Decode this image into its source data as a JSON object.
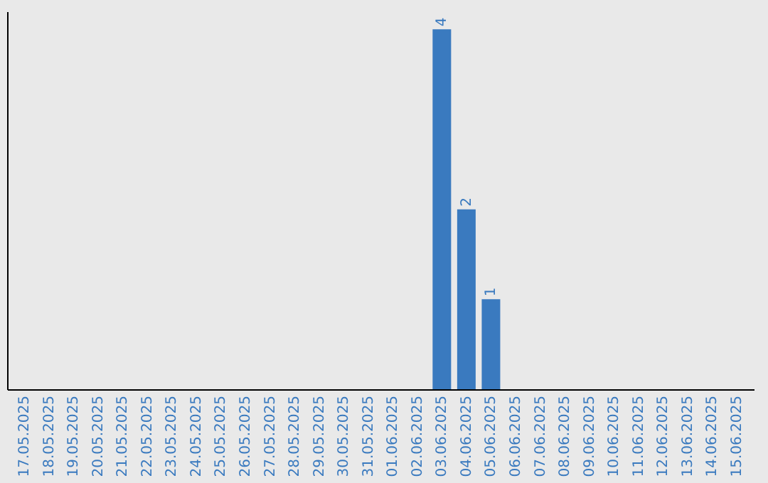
{
  "chart_data": {
    "type": "bar",
    "categories": [
      "17.05.2025",
      "18.05.2025",
      "19.05.2025",
      "20.05.2025",
      "21.05.2025",
      "22.05.2025",
      "23.05.2025",
      "24.05.2025",
      "25.05.2025",
      "26.05.2025",
      "27.05.2025",
      "28.05.2025",
      "29.05.2025",
      "30.05.2025",
      "31.05.2025",
      "01.06.2025",
      "02.06.2025",
      "03.06.2025",
      "04.06.2025",
      "05.06.2025",
      "06.06.2025",
      "07.06.2025",
      "08.06.2025",
      "09.06.2025",
      "10.06.2025",
      "11.06.2025",
      "12.06.2025",
      "13.06.2025",
      "14.06.2025",
      "15.06.2025"
    ],
    "values": [
      null,
      null,
      null,
      null,
      null,
      null,
      null,
      null,
      null,
      null,
      null,
      null,
      null,
      null,
      null,
      null,
      null,
      4,
      2,
      1,
      null,
      null,
      null,
      null,
      null,
      null,
      null,
      null,
      null,
      null
    ],
    "data_labels": true,
    "color": "#3a7abf",
    "ylim": [
      0,
      4.2
    ],
    "tick_labels": "x",
    "grid": false
  }
}
